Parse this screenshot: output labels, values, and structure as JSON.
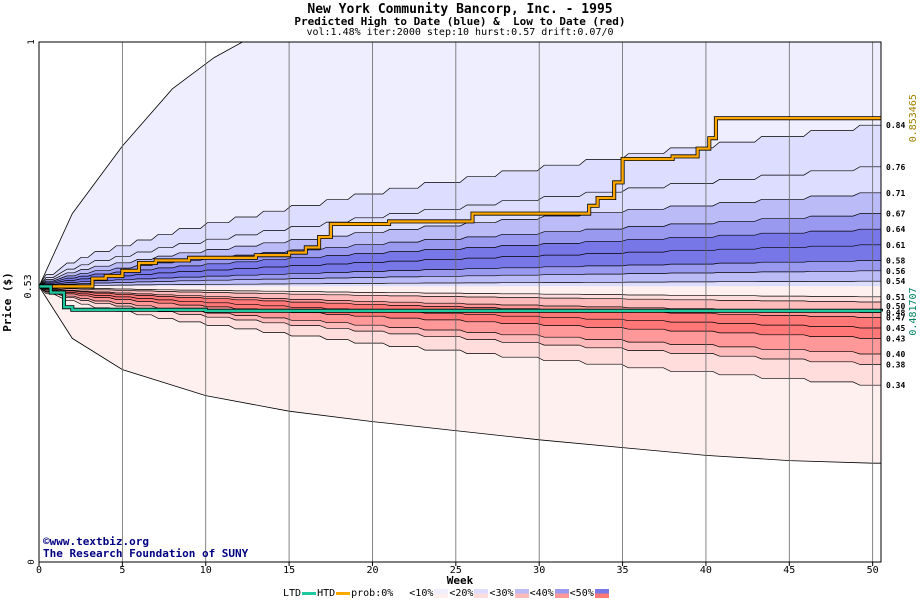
{
  "titles": {
    "main": "New York Community Bancorp, Inc. - 1995",
    "sub": "Predicted High to Date (blue) &  Low to Date (red)",
    "params": "vol:1.48% iter:2000 step:10 hurst:0.57 drift:0.07/0"
  },
  "credits": {
    "line1": "©www.textbiz.org",
    "line2": "The Research Foundation of SUNY"
  },
  "legend": {
    "ltd": "LTD",
    "htd": "HTD",
    "prob": "prob:0%",
    "bins": [
      "<10%",
      "<20%",
      "<30%",
      "<40%",
      "<50%"
    ]
  },
  "colors": {
    "ltd_line": "#20c8a0",
    "htd_line": "#ffa800",
    "blue_bands": [
      "#eeeeff",
      "#ddddff",
      "#bbbbf8",
      "#9999f0",
      "#7777e8"
    ],
    "red_bands": [
      "#fff0f0",
      "#ffdddd",
      "#ffbbbb",
      "#ff9999",
      "#ff7777"
    ],
    "right_label_high": "#a08000",
    "right_label_low": "#008060"
  },
  "chart_data": {
    "type": "area",
    "title": "New York Community Bancorp, Inc. - 1995",
    "xlabel": "Week",
    "ylabel": "Price ($)",
    "xlim": [
      0,
      50.5
    ],
    "ylim": [
      0,
      1
    ],
    "x_ticks": [
      0,
      5,
      10,
      15,
      20,
      25,
      30,
      35,
      40,
      45,
      50
    ],
    "y_ticks": [
      0,
      1
    ],
    "y_marker_label": "0.53",
    "start_price": 0.53,
    "right_labels_high": [
      "0.84",
      "0.76",
      "0.71",
      "0.67",
      "0.64",
      "0.61",
      "0.58",
      "0.56",
      "0.54"
    ],
    "right_labels_low": [
      "0.51",
      "0.50",
      "0.48",
      "0.47",
      "0.45",
      "0.43",
      "0.40",
      "0.38",
      "0.34"
    ],
    "right_value_high": "0.853465",
    "right_value_low": "0.481707",
    "grid": true,
    "legend_position": "bottom",
    "high_quantiles_end": [
      0.84,
      0.76,
      0.71,
      0.67,
      0.64,
      0.61,
      0.58,
      0.56,
      0.54
    ],
    "low_quantiles_end": [
      0.51,
      0.5,
      0.48,
      0.47,
      0.45,
      0.43,
      0.4,
      0.38,
      0.34
    ],
    "high_outer_envelope": [
      [
        0.0,
        0.53
      ],
      [
        2,
        0.67
      ],
      [
        5,
        0.8
      ],
      [
        8,
        0.91
      ],
      [
        10.5,
        0.97
      ],
      [
        12.2,
        1.0
      ]
    ],
    "low_outer_envelope": [
      [
        0.0,
        0.53
      ],
      [
        2,
        0.43
      ],
      [
        5,
        0.37
      ],
      [
        10,
        0.32
      ],
      [
        15,
        0.29
      ],
      [
        20,
        0.27
      ],
      [
        30,
        0.235
      ],
      [
        40,
        0.205
      ],
      [
        45,
        0.195
      ],
      [
        50,
        0.19
      ]
    ],
    "series": [
      {
        "name": "HTD",
        "values": [
          [
            0,
            0.53
          ],
          [
            3,
            0.53
          ],
          [
            3.2,
            0.545
          ],
          [
            4,
            0.55
          ],
          [
            5,
            0.56
          ],
          [
            6,
            0.575
          ],
          [
            7,
            0.58
          ],
          [
            9,
            0.585
          ],
          [
            11,
            0.585
          ],
          [
            13,
            0.59
          ],
          [
            15,
            0.595
          ],
          [
            16,
            0.605
          ],
          [
            16.8,
            0.625
          ],
          [
            17.5,
            0.65
          ],
          [
            21,
            0.655
          ],
          [
            26,
            0.67
          ],
          [
            33,
            0.685
          ],
          [
            33.5,
            0.7
          ],
          [
            34.5,
            0.73
          ],
          [
            35,
            0.775
          ],
          [
            38,
            0.78
          ],
          [
            39.5,
            0.795
          ],
          [
            40.2,
            0.815
          ],
          [
            40.6,
            0.853465
          ],
          [
            50.5,
            0.853465
          ]
        ]
      },
      {
        "name": "LTD",
        "values": [
          [
            0,
            0.53
          ],
          [
            0.7,
            0.518
          ],
          [
            1.5,
            0.49
          ],
          [
            2,
            0.485
          ],
          [
            10,
            0.483
          ],
          [
            50.5,
            0.481707
          ]
        ]
      }
    ]
  }
}
